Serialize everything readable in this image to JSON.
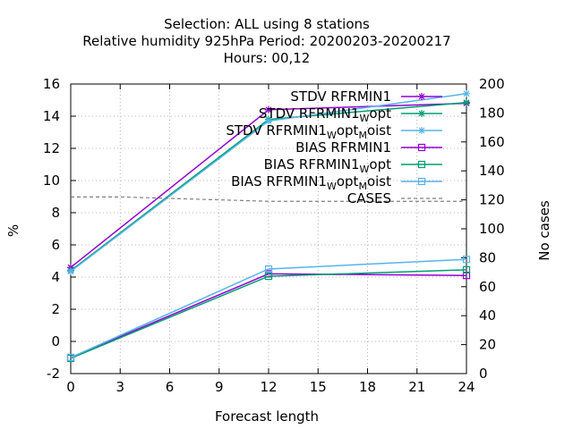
{
  "chart_data": {
    "type": "line",
    "title_lines": [
      "Selection: ALL using     8 stations",
      "Relative humidity 925hPa   Period: 20200203-20200217",
      "Hours:  00,12"
    ],
    "xlabel": "Forecast length",
    "ylabel": "%",
    "y2label": "No cases",
    "xlim": [
      0,
      24
    ],
    "ylim": [
      -2,
      16
    ],
    "y2lim": [
      0,
      200
    ],
    "x_ticks": [
      0,
      3,
      6,
      9,
      12,
      15,
      18,
      21,
      24
    ],
    "y_ticks": [
      -2,
      0,
      2,
      4,
      6,
      8,
      10,
      12,
      14,
      16
    ],
    "y2_ticks": [
      0,
      20,
      40,
      60,
      80,
      100,
      120,
      140,
      160,
      180,
      200
    ],
    "grid": true,
    "legend_position": "top-right",
    "x": [
      0,
      12,
      24
    ],
    "series": [
      {
        "name": "STDV RFRMIN1",
        "legend_main": "STDV RFRMIN1",
        "legend_sub": "",
        "legend_tail": "",
        "values": [
          4.6,
          14.4,
          14.8
        ],
        "color": "#9400d3",
        "marker": "star",
        "axis": "y"
      },
      {
        "name": "STDV RFRMIN1Wopt",
        "legend_main": "STDV RFRMIN1",
        "legend_sub": "W",
        "legend_tail": "opt",
        "values": [
          4.4,
          13.8,
          14.85
        ],
        "color": "#009e73",
        "marker": "star",
        "axis": "y"
      },
      {
        "name": "STDV RFRMIN1WoptMoist",
        "legend_main": "STDV RFRMIN1",
        "legend_sub": "W",
        "legend_tail": "opt",
        "legend_sub2": "M",
        "legend_tail2": "oist",
        "values": [
          4.35,
          13.7,
          15.4
        ],
        "color": "#56b4e9",
        "marker": "star",
        "axis": "y"
      },
      {
        "name": "BIAS RFRMIN1",
        "legend_main": "BIAS RFRMIN1",
        "legend_sub": "",
        "legend_tail": "",
        "values": [
          -1.0,
          4.2,
          4.1
        ],
        "color": "#9400d3",
        "marker": "square",
        "axis": "y"
      },
      {
        "name": "BIAS RFRMIN1Wopt",
        "legend_main": "BIAS RFRMIN1",
        "legend_sub": "W",
        "legend_tail": "opt",
        "values": [
          -1.05,
          4.05,
          4.45
        ],
        "color": "#009e73",
        "marker": "square",
        "axis": "y"
      },
      {
        "name": "BIAS RFRMIN1WoptMoist",
        "legend_main": "BIAS RFRMIN1",
        "legend_sub": "W",
        "legend_tail": "opt",
        "legend_sub2": "M",
        "legend_tail2": "oist",
        "values": [
          -1.0,
          4.5,
          5.1
        ],
        "color": "#56b4e9",
        "marker": "square",
        "axis": "y"
      },
      {
        "name": "CASES",
        "legend_main": "CASES",
        "legend_sub": "",
        "legend_tail": "",
        "x": [
          0,
          3,
          6,
          9,
          12,
          15,
          18,
          21,
          24
        ],
        "values": [
          122,
          122,
          121,
          120,
          119,
          119,
          119,
          119,
          119
        ],
        "color": "#808080",
        "marker": "none",
        "dashed": true,
        "axis": "y2"
      }
    ]
  }
}
